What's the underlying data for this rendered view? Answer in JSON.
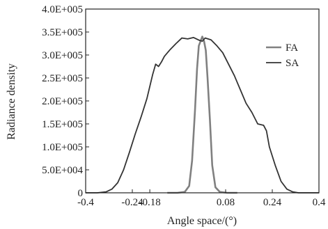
{
  "chart_data": {
    "type": "line",
    "xlabel": "Angle space/(°)",
    "ylabel": "Radiance density",
    "xlim": [
      -0.4,
      0.4
    ],
    "ylim": [
      0,
      400000
    ],
    "x_ticks": [
      -0.4,
      -0.24,
      -0.18,
      0.08,
      0.24,
      0.4
    ],
    "x_tick_labels": [
      "-0.4",
      "-0.24",
      "-0.18",
      "0.08",
      "0.24",
      "0.4"
    ],
    "y_ticks": [
      0,
      50000,
      100000,
      150000,
      200000,
      250000,
      300000,
      350000,
      400000
    ],
    "y_tick_labels": [
      "0",
      "5.0E+004",
      "1.0E+005",
      "1.5E+005",
      "2.0E+005",
      "2.5E+005",
      "3.0E+005",
      "3.5E+005",
      "4.0E+005"
    ],
    "grid": false,
    "legend_position": "top-right",
    "series": [
      {
        "name": "FA",
        "color": "#808080",
        "x": [
          -0.12,
          -0.085,
          -0.06,
          -0.045,
          -0.035,
          -0.025,
          -0.018,
          -0.012,
          -0.006,
          0.0,
          0.006,
          0.012,
          0.018,
          0.026,
          0.034,
          0.045,
          0.06,
          0.085,
          0.12
        ],
        "y": [
          0,
          0,
          2000,
          15000,
          70000,
          180000,
          270000,
          320000,
          330000,
          340000,
          330000,
          310000,
          250000,
          160000,
          60000,
          12000,
          2000,
          0,
          0
        ]
      },
      {
        "name": "SA",
        "color": "#333333",
        "x": [
          -0.4,
          -0.36,
          -0.33,
          -0.31,
          -0.29,
          -0.27,
          -0.25,
          -0.23,
          -0.21,
          -0.19,
          -0.17,
          -0.16,
          -0.15,
          -0.14,
          -0.13,
          -0.11,
          -0.09,
          -0.07,
          -0.05,
          -0.03,
          -0.01,
          0.0,
          0.01,
          0.03,
          0.05,
          0.07,
          0.09,
          0.11,
          0.13,
          0.15,
          0.17,
          0.19,
          0.21,
          0.22,
          0.23,
          0.25,
          0.27,
          0.29,
          0.31,
          0.33,
          0.36,
          0.4
        ],
        "y": [
          0,
          0,
          2000,
          8000,
          22000,
          50000,
          88000,
          128000,
          165000,
          205000,
          258000,
          280000,
          275000,
          285000,
          297000,
          312000,
          325000,
          337000,
          335000,
          338000,
          332000,
          330000,
          337000,
          333000,
          320000,
          305000,
          280000,
          255000,
          225000,
          195000,
          175000,
          150000,
          147000,
          135000,
          100000,
          60000,
          25000,
          8000,
          2000,
          0,
          0,
          0
        ]
      }
    ]
  }
}
